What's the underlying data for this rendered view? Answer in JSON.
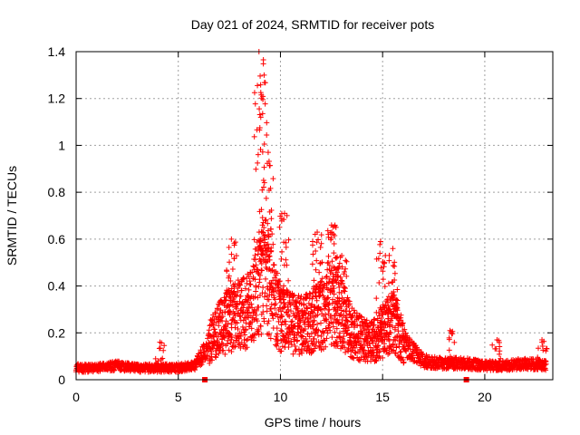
{
  "chart_data": {
    "type": "scatter",
    "title": "Day 021 of 2024, SRMTID for receiver pots",
    "xlabel": "GPS time / hours",
    "ylabel": "SRMTID / TECUs",
    "xlim": [
      0,
      23.33
    ],
    "ylim": [
      0,
      1.4
    ],
    "xticks": [
      "0",
      "5",
      "10",
      "15",
      "20"
    ],
    "yticks": [
      "0",
      "0.2",
      "0.4",
      "0.6",
      "0.8",
      "1",
      "1.2",
      "1.4"
    ],
    "grid": true,
    "marker": "+",
    "color": "#ff0000",
    "series": [
      {
        "name": "SRMTID",
        "profile_x": [
          0,
          1,
          2,
          3,
          4,
          5,
          5.8,
          6.3,
          6.8,
          7.5,
          8,
          8.5,
          9,
          9.3,
          9.6,
          10,
          10.5,
          11,
          11.5,
          12,
          12.5,
          13,
          13.5,
          14,
          14.5,
          15,
          15.5,
          16,
          16.5,
          17,
          18,
          19,
          20,
          21,
          22,
          23
        ],
        "profile_y": [
          0.05,
          0.05,
          0.06,
          0.05,
          0.05,
          0.05,
          0.06,
          0.12,
          0.2,
          0.26,
          0.28,
          0.3,
          0.42,
          0.45,
          0.35,
          0.26,
          0.24,
          0.23,
          0.24,
          0.28,
          0.33,
          0.28,
          0.2,
          0.17,
          0.16,
          0.2,
          0.25,
          0.16,
          0.12,
          0.08,
          0.07,
          0.07,
          0.06,
          0.06,
          0.07,
          0.06
        ],
        "peaks": [
          {
            "x": 4.1,
            "y": 0.16
          },
          {
            "x": 7.6,
            "y": 0.6
          },
          {
            "x": 8.95,
            "y": 1.4
          },
          {
            "x": 9.2,
            "y": 1.3
          },
          {
            "x": 9.4,
            "y": 0.97
          },
          {
            "x": 10.2,
            "y": 0.71
          },
          {
            "x": 11.8,
            "y": 0.63
          },
          {
            "x": 12.5,
            "y": 0.66
          },
          {
            "x": 13,
            "y": 0.53
          },
          {
            "x": 14.9,
            "y": 0.59
          },
          {
            "x": 15.5,
            "y": 0.56
          },
          {
            "x": 18.3,
            "y": 0.21
          },
          {
            "x": 20.6,
            "y": 0.17
          },
          {
            "x": 22.8,
            "y": 0.17
          }
        ],
        "outliers": [
          {
            "x": 6.3,
            "y": 0.0
          },
          {
            "x": 19.1,
            "y": 0.0
          }
        ],
        "x_end": 23.0
      }
    ]
  }
}
